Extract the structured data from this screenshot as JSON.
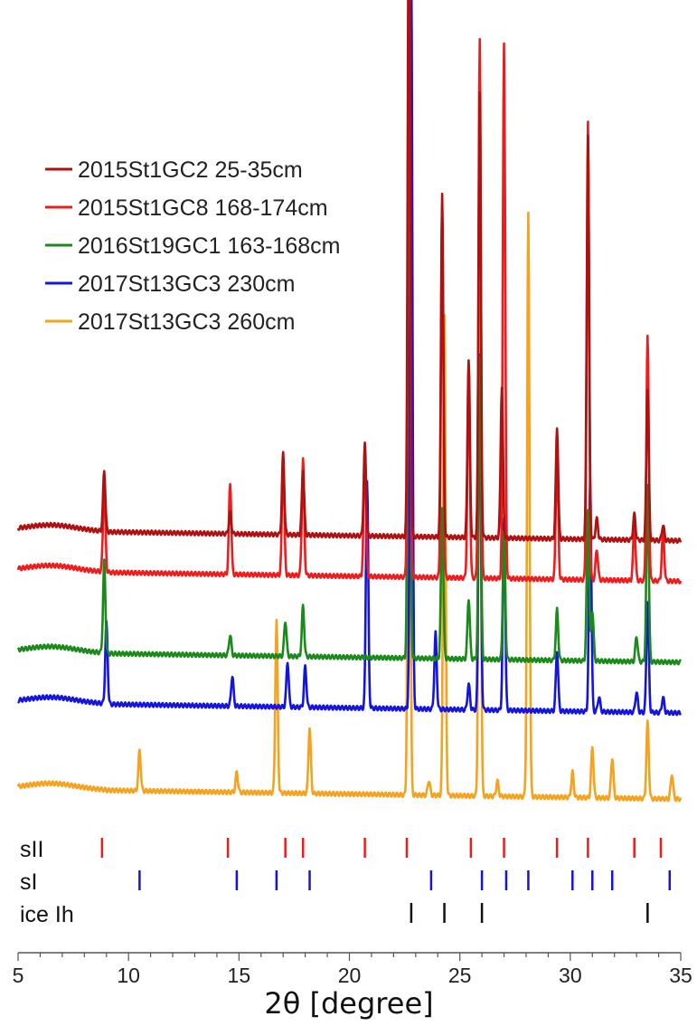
{
  "chart_data": {
    "type": "line",
    "xlabel": "2θ [degree]",
    "ylabel": "",
    "xlim": [
      5,
      35
    ],
    "x_ticks": [
      "5",
      "10",
      "15",
      "20",
      "25",
      "30",
      "35"
    ],
    "legend": {
      "placement": "top-left"
    },
    "grid": false,
    "series": [
      {
        "name": "2015St1GC2 25-35cm",
        "color": "#b01010",
        "baseline": 0.56,
        "peaks": [
          [
            8.9,
            0.12
          ],
          [
            14.6,
            0.04
          ],
          [
            17.0,
            0.16
          ],
          [
            17.9,
            0.13
          ],
          [
            20.7,
            0.18
          ],
          [
            22.7,
            1.45
          ],
          [
            24.2,
            0.68
          ],
          [
            25.4,
            0.35
          ],
          [
            25.9,
            0.88
          ],
          [
            26.9,
            0.3
          ],
          [
            29.4,
            0.22
          ],
          [
            30.8,
            0.8
          ],
          [
            31.2,
            0.04
          ],
          [
            32.9,
            0.05
          ],
          [
            33.5,
            0.3
          ],
          [
            34.2,
            0.03
          ]
        ]
      },
      {
        "name": "2015St1GC8 168-174cm",
        "color": "#ee1c1c",
        "baseline": 0.48,
        "peaks": [
          [
            8.9,
            0.18
          ],
          [
            14.6,
            0.18
          ],
          [
            17.0,
            0.24
          ],
          [
            17.9,
            0.23
          ],
          [
            20.7,
            0.26
          ],
          [
            22.7,
            1.3
          ],
          [
            24.2,
            0.73
          ],
          [
            25.4,
            0.42
          ],
          [
            25.9,
            1.06
          ],
          [
            27.0,
            1.06
          ],
          [
            29.4,
            0.26
          ],
          [
            30.8,
            0.9
          ],
          [
            31.2,
            0.06
          ],
          [
            32.9,
            0.11
          ],
          [
            33.5,
            0.48
          ],
          [
            34.2,
            0.1
          ]
        ]
      },
      {
        "name": "2016St19GC1 163-168cm",
        "color": "#1a8a1a",
        "baseline": 0.32,
        "peaks": [
          [
            8.9,
            0.18
          ],
          [
            14.6,
            0.04
          ],
          [
            17.1,
            0.07
          ],
          [
            17.9,
            0.1
          ],
          [
            22.7,
            1.45
          ],
          [
            24.2,
            0.3
          ],
          [
            25.4,
            0.12
          ],
          [
            25.9,
            0.6
          ],
          [
            27.0,
            0.25
          ],
          [
            29.4,
            0.1
          ],
          [
            30.8,
            0.3
          ],
          [
            31.0,
            0.1
          ],
          [
            33.0,
            0.05
          ],
          [
            33.5,
            0.35
          ]
        ]
      },
      {
        "name": "2017St13GC3 230cm",
        "color": "#1414e0",
        "baseline": 0.22,
        "peaks": [
          [
            9.0,
            0.16
          ],
          [
            14.7,
            0.06
          ],
          [
            17.2,
            0.09
          ],
          [
            18.0,
            0.08
          ],
          [
            20.8,
            0.45
          ],
          [
            22.8,
            1.48
          ],
          [
            23.9,
            0.15
          ],
          [
            25.4,
            0.05
          ],
          [
            25.9,
            0.7
          ],
          [
            27.0,
            0.38
          ],
          [
            29.4,
            0.12
          ],
          [
            30.9,
            0.46
          ],
          [
            31.3,
            0.03
          ],
          [
            33.0,
            0.04
          ],
          [
            33.5,
            0.22
          ],
          [
            34.2,
            0.03
          ]
        ]
      },
      {
        "name": "2017St13GC3 260cm",
        "color": "#f5a21e",
        "baseline": 0.05,
        "peaks": [
          [
            10.5,
            0.08
          ],
          [
            14.9,
            0.04
          ],
          [
            16.7,
            0.34
          ],
          [
            18.2,
            0.13
          ],
          [
            22.7,
            1.35
          ],
          [
            23.6,
            0.03
          ],
          [
            24.3,
            0.95
          ],
          [
            25.9,
            1.0
          ],
          [
            26.7,
            0.03
          ],
          [
            28.1,
            1.15
          ],
          [
            30.1,
            0.05
          ],
          [
            31.0,
            0.1
          ],
          [
            31.9,
            0.08
          ],
          [
            33.5,
            0.15
          ],
          [
            34.6,
            0.05
          ]
        ]
      }
    ],
    "reference_rows": [
      {
        "label": "sII",
        "color": "#ee1c1c",
        "positions": [
          8.8,
          14.5,
          17.1,
          17.9,
          20.7,
          22.6,
          25.5,
          27.0,
          29.4,
          30.8,
          32.9,
          34.1
        ]
      },
      {
        "label": "sI",
        "color": "#1414e0",
        "positions": [
          10.5,
          14.9,
          16.7,
          18.2,
          23.7,
          26.0,
          27.1,
          28.1,
          30.1,
          31.0,
          31.9,
          34.5
        ]
      },
      {
        "label": "ice Ih",
        "color": "#111111",
        "positions": [
          22.8,
          24.3,
          26.0,
          33.5
        ]
      }
    ]
  }
}
